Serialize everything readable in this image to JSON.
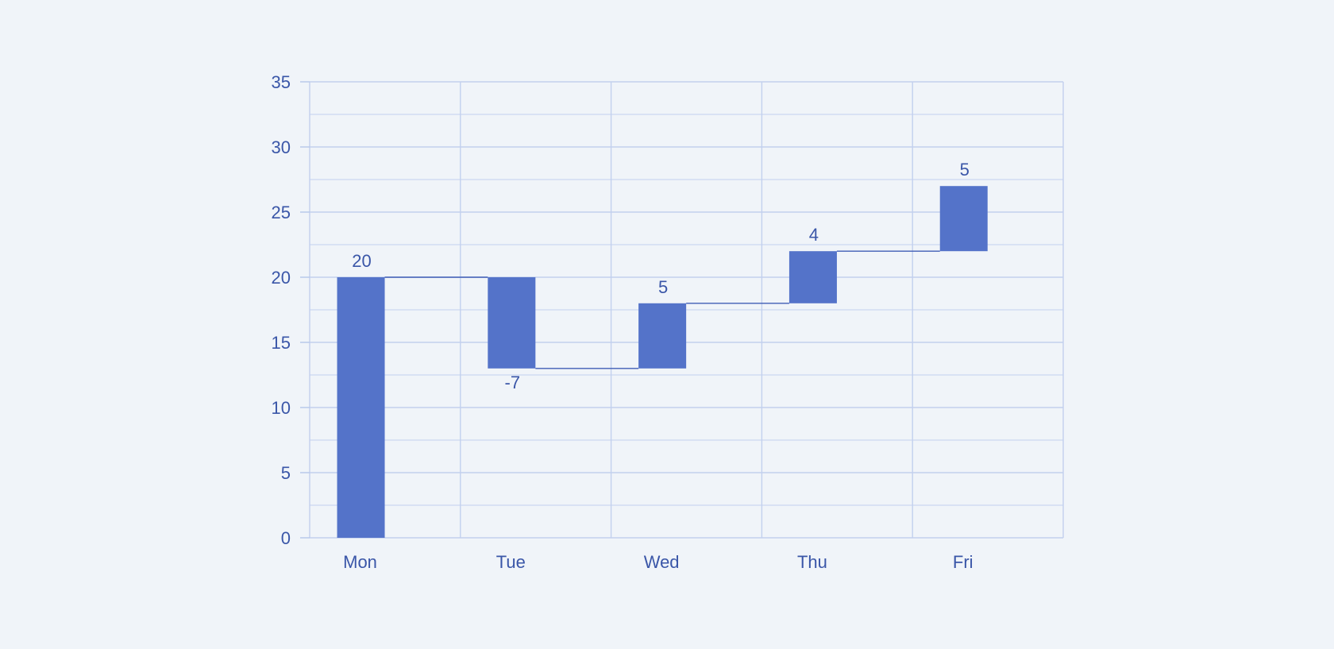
{
  "chart_data": {
    "type": "bar",
    "subtype": "waterfall",
    "categories": [
      "Mon",
      "Tue",
      "Wed",
      "Thu",
      "Fri"
    ],
    "values": [
      20,
      -7,
      5,
      4,
      5
    ],
    "value_labels": [
      "20",
      "-7",
      "5",
      "4",
      "5"
    ],
    "ylim": [
      0,
      35
    ],
    "yticks": [
      0,
      5,
      10,
      15,
      20,
      25,
      30,
      35
    ],
    "ytick_labels": [
      "0",
      "5",
      "10",
      "15",
      "20",
      "25",
      "30",
      "35"
    ],
    "title": "",
    "xlabel": "",
    "ylabel": "",
    "grid": true,
    "connectors": true,
    "legend": "none"
  },
  "colors": {
    "background": "#f0f4f9",
    "bar": "#5473c9",
    "connector": "#3f5db5",
    "grid": "#c2d0ee",
    "axis": "#b5c6ea",
    "text": "#3a56a8"
  }
}
